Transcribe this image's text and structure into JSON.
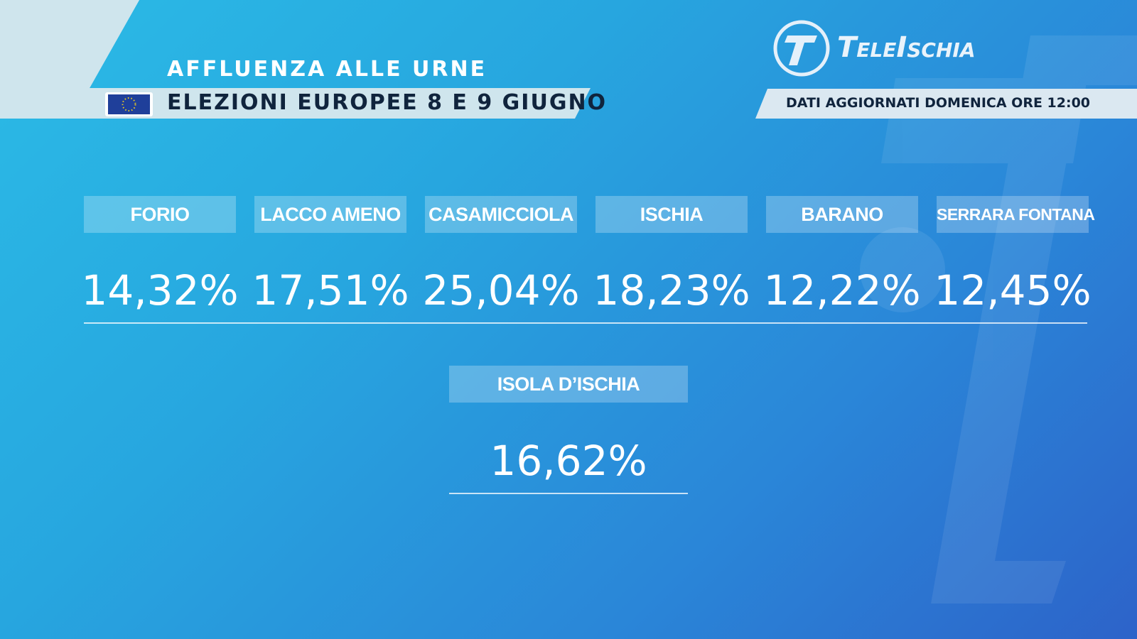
{
  "header": {
    "title": "AFFLUENZA ALLE URNE",
    "subtitle": "ELEZIONI EUROPEE 8 E 9 GIUGNO",
    "updated": "DATI AGGIORNATI DOMENICA ORE 12:00",
    "logo": "TeleIschia"
  },
  "municipalities": [
    {
      "name": "FORIO",
      "turnout": "14,32%"
    },
    {
      "name": "LACCO AMENO",
      "turnout": "17,51%"
    },
    {
      "name": "CASAMICCIOLA",
      "turnout": "25,04%"
    },
    {
      "name": "ISCHIA",
      "turnout": "18,23%"
    },
    {
      "name": "BARANO",
      "turnout": "12,22%"
    },
    {
      "name": "SERRARA FONTANA",
      "turnout": "12,45%"
    }
  ],
  "total": {
    "name": "ISOLA D’ISCHIA",
    "turnout": "16,62%"
  }
}
